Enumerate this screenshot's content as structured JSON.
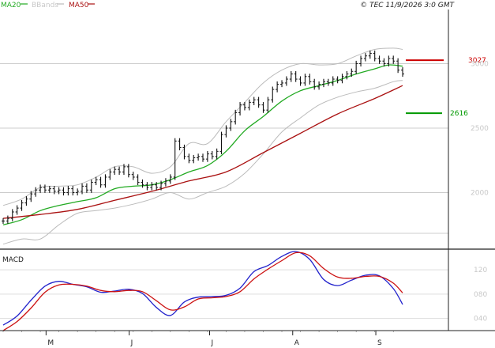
{
  "header": {
    "legend": [
      {
        "label": "MA20",
        "color": "#22aa22"
      },
      {
        "label": "BBands",
        "color": "#bbbbbb"
      },
      {
        "label": "MA50",
        "color": "#aa1111"
      }
    ],
    "source": "© TEC 11/9/2026 3:0 GMT"
  },
  "chart_data": [
    {
      "type": "ohlc",
      "panel": "price",
      "x": {
        "type": "date",
        "start": "2026-04-15",
        "end": "2026-09-11",
        "tick_labels": [
          {
            "label": "M",
            "date": "2026-05-01"
          },
          {
            "label": "J",
            "date": "2026-06-01"
          },
          {
            "label": "J",
            "date": "2026-07-01"
          },
          {
            "label": "A",
            "date": "2026-08-01"
          },
          {
            "label": "S",
            "date": "2026-09-01"
          }
        ]
      },
      "y": {
        "min": 1580,
        "max": 3420,
        "ticks": [
          2000,
          2500,
          3000
        ]
      },
      "grid": true,
      "annotations": [
        {
          "label": "3027",
          "value": 3027,
          "color": "#cc0000"
        },
        {
          "label": "2616",
          "value": 2616,
          "color": "#009900"
        }
      ],
      "series": [
        {
          "name": "Price",
          "color": "#111111",
          "points": [
            [
              0,
              1780
            ],
            [
              1,
              1800
            ],
            [
              2,
              1850
            ],
            [
              3,
              1880
            ],
            [
              4,
              1920
            ],
            [
              5,
              1950
            ],
            [
              6,
              1990
            ],
            [
              7,
              2020
            ],
            [
              8,
              2040
            ],
            [
              9,
              2020
            ],
            [
              10,
              2030
            ],
            [
              11,
              2010
            ],
            [
              12,
              2020
            ],
            [
              13,
              2000
            ],
            [
              14,
              2030
            ],
            [
              15,
              2000
            ],
            [
              16,
              2010
            ],
            [
              17,
              2050
            ],
            [
              18,
              2020
            ],
            [
              19,
              2080
            ],
            [
              20,
              2100
            ],
            [
              21,
              2060
            ],
            [
              22,
              2120
            ],
            [
              23,
              2160
            ],
            [
              24,
              2180
            ],
            [
              25,
              2160
            ],
            [
              26,
              2200
            ],
            [
              27,
              2140
            ],
            [
              28,
              2120
            ],
            [
              29,
              2080
            ],
            [
              30,
              2060
            ],
            [
              31,
              2040
            ],
            [
              32,
              2060
            ],
            [
              33,
              2040
            ],
            [
              34,
              2070
            ],
            [
              35,
              2090
            ],
            [
              36,
              2120
            ],
            [
              37,
              2400
            ],
            [
              38,
              2350
            ],
            [
              39,
              2280
            ],
            [
              40,
              2250
            ],
            [
              41,
              2270
            ],
            [
              42,
              2280
            ],
            [
              43,
              2260
            ],
            [
              44,
              2300
            ],
            [
              45,
              2280
            ],
            [
              46,
              2320
            ],
            [
              47,
              2450
            ],
            [
              48,
              2500
            ],
            [
              49,
              2550
            ],
            [
              50,
              2620
            ],
            [
              51,
              2680
            ],
            [
              52,
              2660
            ],
            [
              53,
              2700
            ],
            [
              54,
              2720
            ],
            [
              55,
              2680
            ],
            [
              56,
              2640
            ],
            [
              57,
              2720
            ],
            [
              58,
              2800
            ],
            [
              59,
              2840
            ],
            [
              60,
              2850
            ],
            [
              61,
              2880
            ],
            [
              62,
              2920
            ],
            [
              63,
              2880
            ],
            [
              64,
              2850
            ],
            [
              65,
              2900
            ],
            [
              66,
              2860
            ],
            [
              67,
              2820
            ],
            [
              68,
              2840
            ],
            [
              69,
              2860
            ],
            [
              70,
              2850
            ],
            [
              71,
              2880
            ],
            [
              72,
              2870
            ],
            [
              73,
              2900
            ],
            [
              74,
              2920
            ],
            [
              75,
              2940
            ],
            [
              76,
              3000
            ],
            [
              77,
              3040
            ],
            [
              78,
              3060
            ],
            [
              79,
              3080
            ],
            [
              80,
              3040
            ],
            [
              81,
              3020
            ],
            [
              82,
              3000
            ],
            [
              83,
              3040
            ],
            [
              84,
              3020
            ],
            [
              85,
              2950
            ],
            [
              86,
              2920
            ]
          ]
        },
        {
          "name": "MA20",
          "color": "#22aa22",
          "points": [
            [
              0,
              1750
            ],
            [
              4,
              1790
            ],
            [
              8,
              1860
            ],
            [
              12,
              1900
            ],
            [
              16,
              1930
            ],
            [
              20,
              1960
            ],
            [
              24,
              2030
            ],
            [
              28,
              2050
            ],
            [
              32,
              2060
            ],
            [
              36,
              2100
            ],
            [
              40,
              2160
            ],
            [
              44,
              2210
            ],
            [
              48,
              2320
            ],
            [
              52,
              2480
            ],
            [
              56,
              2590
            ],
            [
              60,
              2710
            ],
            [
              64,
              2790
            ],
            [
              68,
              2830
            ],
            [
              72,
              2870
            ],
            [
              76,
              2920
            ],
            [
              80,
              2960
            ],
            [
              83,
              2990
            ],
            [
              86,
              2980
            ]
          ]
        },
        {
          "name": "MA50",
          "color": "#aa1111",
          "points": [
            [
              0,
              1800
            ],
            [
              8,
              1830
            ],
            [
              16,
              1870
            ],
            [
              24,
              1940
            ],
            [
              32,
              2010
            ],
            [
              40,
              2090
            ],
            [
              48,
              2160
            ],
            [
              56,
              2310
            ],
            [
              64,
              2460
            ],
            [
              72,
              2610
            ],
            [
              80,
              2730
            ],
            [
              86,
              2830
            ]
          ]
        },
        {
          "name": "BBands upper",
          "color": "#bbbbbb",
          "points": [
            [
              0,
              1900
            ],
            [
              4,
              1950
            ],
            [
              8,
              2040
            ],
            [
              12,
              2050
            ],
            [
              16,
              2060
            ],
            [
              20,
              2120
            ],
            [
              24,
              2200
            ],
            [
              28,
              2200
            ],
            [
              32,
              2150
            ],
            [
              36,
              2200
            ],
            [
              40,
              2380
            ],
            [
              44,
              2380
            ],
            [
              48,
              2550
            ],
            [
              52,
              2700
            ],
            [
              56,
              2850
            ],
            [
              60,
              2950
            ],
            [
              64,
              3000
            ],
            [
              68,
              2990
            ],
            [
              72,
              3000
            ],
            [
              76,
              3060
            ],
            [
              80,
              3110
            ],
            [
              84,
              3120
            ],
            [
              86,
              3110
            ]
          ]
        },
        {
          "name": "BBands lower",
          "color": "#bbbbbb",
          "points": [
            [
              0,
              1600
            ],
            [
              4,
              1640
            ],
            [
              8,
              1640
            ],
            [
              12,
              1750
            ],
            [
              16,
              1840
            ],
            [
              20,
              1860
            ],
            [
              24,
              1880
            ],
            [
              28,
              1910
            ],
            [
              32,
              1950
            ],
            [
              36,
              2000
            ],
            [
              40,
              1950
            ],
            [
              44,
              2000
            ],
            [
              48,
              2050
            ],
            [
              52,
              2150
            ],
            [
              56,
              2300
            ],
            [
              60,
              2470
            ],
            [
              64,
              2580
            ],
            [
              68,
              2680
            ],
            [
              72,
              2740
            ],
            [
              76,
              2780
            ],
            [
              80,
              2810
            ],
            [
              84,
              2860
            ],
            [
              86,
              2870
            ]
          ]
        }
      ]
    },
    {
      "type": "line",
      "panel": "macd",
      "title": "MACD",
      "y": {
        "min": 0.2,
        "max": 1.5,
        "ticks": [
          0.4,
          0.8,
          1.2
        ],
        "tick_labels": [
          "040",
          "080",
          "120"
        ]
      },
      "grid": true,
      "series": [
        {
          "name": "MACD",
          "color": "#2222cc",
          "points": [
            [
              0,
              0.29
            ],
            [
              3,
              0.44
            ],
            [
              6,
              0.7
            ],
            [
              9,
              0.93
            ],
            [
              12,
              1.01
            ],
            [
              15,
              0.96
            ],
            [
              18,
              0.92
            ],
            [
              21,
              0.83
            ],
            [
              24,
              0.85
            ],
            [
              27,
              0.88
            ],
            [
              30,
              0.81
            ],
            [
              33,
              0.58
            ],
            [
              36,
              0.45
            ],
            [
              39,
              0.67
            ],
            [
              42,
              0.75
            ],
            [
              45,
              0.76
            ],
            [
              48,
              0.78
            ],
            [
              51,
              0.9
            ],
            [
              54,
              1.17
            ],
            [
              57,
              1.27
            ],
            [
              60,
              1.42
            ],
            [
              63,
              1.5
            ],
            [
              66,
              1.37
            ],
            [
              69,
              1.04
            ],
            [
              72,
              0.94
            ],
            [
              75,
              1.03
            ],
            [
              78,
              1.11
            ],
            [
              81,
              1.1
            ],
            [
              84,
              0.89
            ],
            [
              86,
              0.63
            ]
          ]
        },
        {
          "name": "Signal",
          "color": "#cc1111",
          "points": [
            [
              0,
              0.2
            ],
            [
              3,
              0.35
            ],
            [
              6,
              0.57
            ],
            [
              9,
              0.83
            ],
            [
              12,
              0.95
            ],
            [
              15,
              0.96
            ],
            [
              18,
              0.93
            ],
            [
              21,
              0.86
            ],
            [
              24,
              0.84
            ],
            [
              27,
              0.86
            ],
            [
              30,
              0.84
            ],
            [
              33,
              0.69
            ],
            [
              36,
              0.54
            ],
            [
              39,
              0.59
            ],
            [
              42,
              0.72
            ],
            [
              45,
              0.74
            ],
            [
              48,
              0.76
            ],
            [
              51,
              0.84
            ],
            [
              54,
              1.05
            ],
            [
              57,
              1.21
            ],
            [
              60,
              1.35
            ],
            [
              63,
              1.48
            ],
            [
              66,
              1.43
            ],
            [
              69,
              1.22
            ],
            [
              72,
              1.08
            ],
            [
              75,
              1.06
            ],
            [
              78,
              1.09
            ],
            [
              81,
              1.09
            ],
            [
              84,
              0.98
            ],
            [
              86,
              0.82
            ]
          ]
        }
      ]
    }
  ]
}
